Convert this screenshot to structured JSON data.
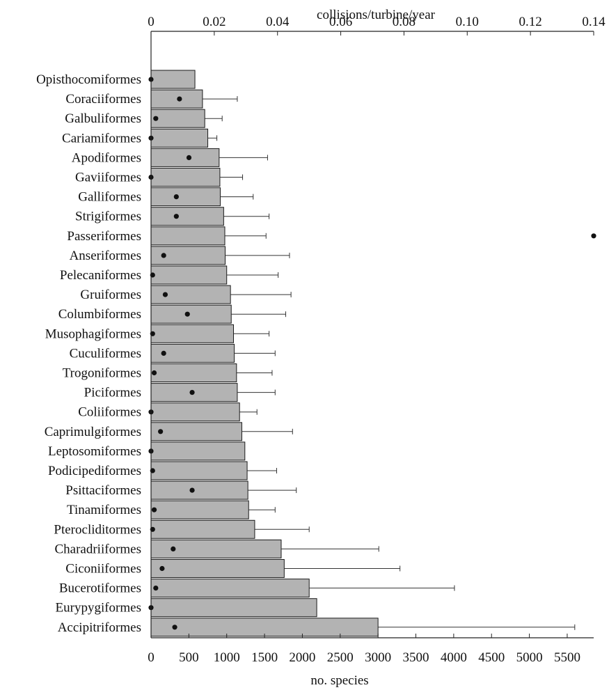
{
  "chart_data": {
    "type": "bar",
    "orientation": "horizontal",
    "top_axis_label": "collisions/turbine/year",
    "bottom_axis_label": "no. species",
    "top_axis_range": [
      0,
      0.14
    ],
    "top_axis_ticks": [
      "0",
      "0.02",
      "0.04",
      "0.06",
      "0.08",
      "0.10",
      "0.12",
      "0.14"
    ],
    "bottom_axis_range": [
      0,
      5850
    ],
    "bottom_axis_ticks": [
      "0",
      "500",
      "1000",
      "1500",
      "2000",
      "2500",
      "3000",
      "3500",
      "4000",
      "4500",
      "5000",
      "5500"
    ],
    "grid": false,
    "bar_color": "#b3b3b3",
    "categories": [
      "Opisthocomiformes",
      "Coraciiformes",
      "Galbuliformes",
      "Cariamiformes",
      "Apodiformes",
      "Gaviiformes",
      "Galliformes",
      "Strigiformes",
      "Passeriformes",
      "Anseriformes",
      "Pelecaniformes",
      "Gruiformes",
      "Columbiformes",
      "Musophagiformes",
      "Cuculiformes",
      "Trogoniformes",
      "Piciformes",
      "Coliiformes",
      "Caprimulgiformes",
      "Leptosomiformes",
      "Podicipediformes",
      "Psittaciformes",
      "Tinamiformes",
      "Pterocliditormes",
      "Charadriiformes",
      "Ciconiiformes",
      "Bucerotiformes",
      "Eurypygiformes",
      "Accipitriformes"
    ],
    "series": [
      {
        "role": "bars",
        "axis": "bottom",
        "values": [
          580,
          680,
          710,
          750,
          900,
          910,
          915,
          960,
          975,
          980,
          1000,
          1050,
          1060,
          1090,
          1100,
          1130,
          1140,
          1170,
          1200,
          1240,
          1270,
          1280,
          1290,
          1370,
          1720,
          1760,
          2090,
          2190,
          3000
        ],
        "error_upper": [
          580,
          1140,
          940,
          870,
          1540,
          1210,
          1350,
          1560,
          1520,
          1830,
          1680,
          1850,
          1780,
          1560,
          1640,
          1600,
          1640,
          1400,
          1870,
          1240,
          1660,
          1920,
          1640,
          2090,
          3010,
          3290,
          4010,
          2190,
          5600
        ]
      },
      {
        "role": "points",
        "axis": "top",
        "values": [
          0.0,
          0.009,
          0.0015,
          0.0,
          0.012,
          0.0,
          0.008,
          0.008,
          0.14,
          0.004,
          0.0005,
          0.0045,
          0.0115,
          0.0005,
          0.004,
          0.001,
          0.013,
          0.0,
          0.003,
          0.0,
          0.0005,
          0.013,
          0.001,
          0.0005,
          0.007,
          0.0035,
          0.0015,
          0.0,
          0.0075
        ]
      }
    ]
  }
}
